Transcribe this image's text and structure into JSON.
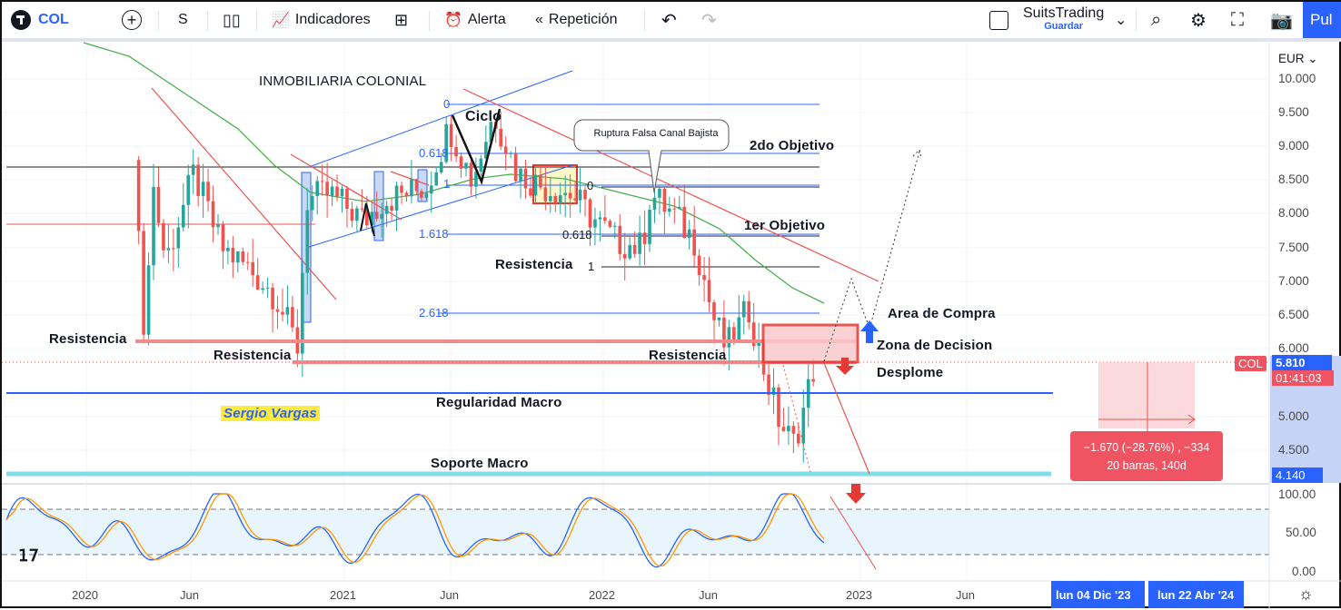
{
  "toolbar": {
    "symbol": "COL",
    "interval": "S",
    "indicators": "Indicadores",
    "alert": "Alerta",
    "replay": "Repetición",
    "layout_name": "SuitsTrading",
    "save": "Guardar",
    "publish": "Pul"
  },
  "chart": {
    "title": "INMOBILIARIA COLONIAL",
    "currency": "EUR",
    "price_ticks": [
      "10.000",
      "9.500",
      "9.000",
      "8.500",
      "8.000",
      "7.500",
      "7.000",
      "6.500",
      "6.000",
      "5.000",
      "4.500"
    ],
    "time_ticks": [
      "2020",
      "Jun",
      "2021",
      "Jun",
      "2022",
      "Jun",
      "2023",
      "Jun"
    ],
    "osc_ticks": [
      "100.00",
      "50.00",
      "0.00"
    ],
    "last_price": "5.810",
    "countdown": "01:41:03",
    "symbol_label": "COL",
    "crosshair_price": "4.140",
    "date_badges": [
      "lun 04 Dic '23",
      "lun 22 Abr '24"
    ],
    "annotations": {
      "ciclo": "Ciclo",
      "second_target": "2do Objetivo",
      "first_target": "1er Objetivo",
      "resistance": "Resistencia",
      "buy_area": "Area de Compra",
      "decision_zone": "Zona de Decision",
      "collapse": "Desplome",
      "macro_regularity": "Regularidad Macro",
      "macro_support": "Soporte Macro",
      "author": "Sergio Vargas",
      "callout": "Ruptura Falsa Canal Bajista"
    },
    "fib_blue": [
      "0",
      "0.618",
      "1",
      "1.618",
      "2.618"
    ],
    "fib_black": [
      "0",
      "0.618",
      "1"
    ],
    "measure": {
      "line1": "−1.670 (−28.76%) , −334",
      "line2": "20 barras, 140d"
    },
    "colors": {
      "up": "#26a69a",
      "down": "#ef5350",
      "accent": "#2962ff",
      "ma": "#4caf50",
      "support": "#80deea"
    },
    "price_anchors": [
      [
        "2020-03-15",
        8.0
      ],
      [
        "2020-03-22",
        6.0
      ],
      [
        "2020-04-03",
        8.5
      ],
      [
        "2020-04-22",
        7.3
      ],
      [
        "2020-06-01",
        8.6
      ],
      [
        "2020-07-10",
        7.5
      ],
      [
        "2020-08-17",
        7.2
      ],
      [
        "2020-09-24",
        6.8
      ],
      [
        "2020-10-27",
        6.0
      ],
      [
        "2020-11-06",
        8.2
      ],
      [
        "2020-12-10",
        8.3
      ],
      [
        "2021-01-28",
        7.9
      ],
      [
        "2021-02-22",
        8.2
      ],
      [
        "2021-04-26",
        8.4
      ],
      [
        "2021-05-28",
        9.3
      ],
      [
        "2021-06-29",
        8.5
      ],
      [
        "2021-07-30",
        9.5
      ],
      [
        "2021-09-01",
        8.6
      ],
      [
        "2021-10-09",
        8.4
      ],
      [
        "2021-11-16",
        8.3
      ],
      [
        "2021-12-11",
        8.0
      ],
      [
        "2022-01-18",
        7.6
      ],
      [
        "2022-02-24",
        7.5
      ],
      [
        "2022-03-08",
        8.3
      ],
      [
        "2022-04-09",
        8.0
      ],
      [
        "2022-05-10",
        7.6
      ],
      [
        "2022-06-04",
        6.5
      ],
      [
        "2022-06-23",
        6.0
      ],
      [
        "2022-07-25",
        6.6
      ],
      [
        "2022-08-13",
        5.8
      ],
      [
        "2022-09-07",
        4.9
      ],
      [
        "2022-09-26",
        4.6
      ],
      [
        "2022-10-08",
        5.0
      ],
      [
        "2022-10-27",
        5.81
      ]
    ]
  }
}
